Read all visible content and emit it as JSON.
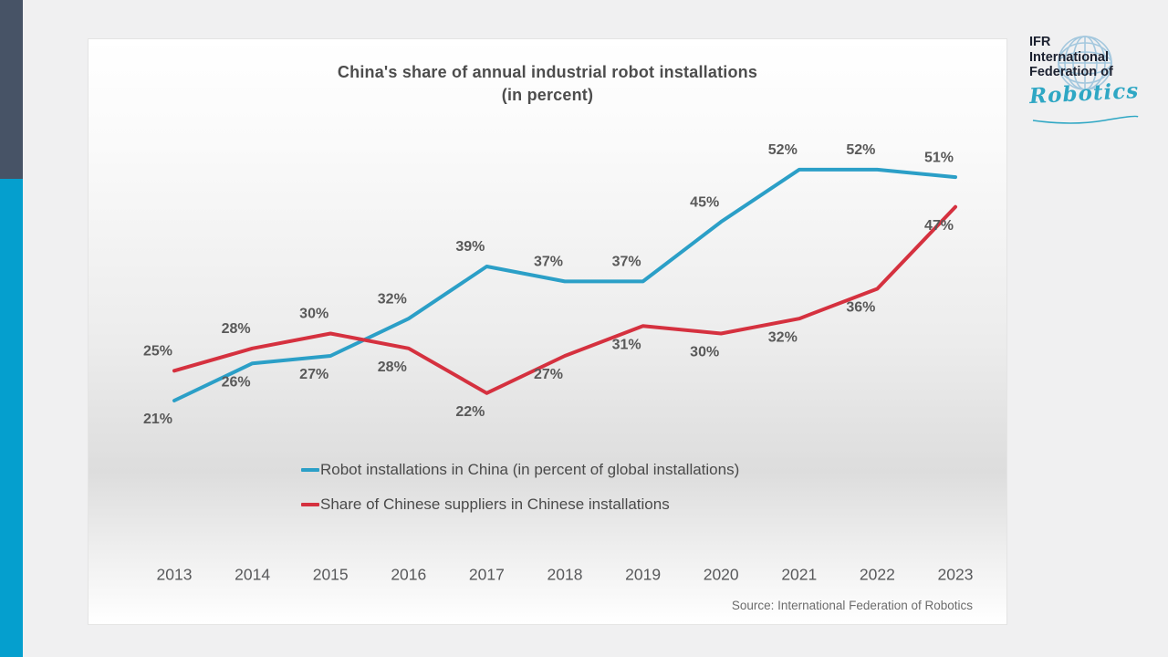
{
  "card": {
    "title_line1": "China's share of annual industrial robot installations",
    "title_line2": "(in percent)",
    "source": "Source: International Federation of Robotics"
  },
  "logo": {
    "line1": "IFR",
    "line2": "International",
    "line3": "Federation of",
    "script": "Robotics",
    "globe_icon": "globe-icon",
    "script_color": "#2fa7c4",
    "text_color": "#1c2130"
  },
  "colors": {
    "accent_dark": "#475366",
    "accent_cyan": "#059fce",
    "background": "#f0f0f1",
    "label_gray": "#595959"
  },
  "chart_data": {
    "type": "line",
    "title": "China's share of annual industrial robot installations (in percent)",
    "categories": [
      "2013",
      "2014",
      "2015",
      "2016",
      "2017",
      "2018",
      "2019",
      "2020",
      "2021",
      "2022",
      "2023"
    ],
    "series": [
      {
        "name": "Robot installations in China (in percent of global installations)",
        "color": "#2b9fc7",
        "values": [
          21,
          26,
          27,
          32,
          39,
          37,
          37,
          45,
          52,
          52,
          51
        ],
        "label_side": [
          "below",
          "below",
          "below",
          "above",
          "above",
          "above",
          "above",
          "above",
          "above",
          "above",
          "above"
        ]
      },
      {
        "name": "Share of Chinese suppliers in Chinese installations",
        "color": "#d5313f",
        "values": [
          25,
          28,
          30,
          28,
          22,
          27,
          31,
          30,
          32,
          36,
          47
        ],
        "label_side": [
          "above",
          "above",
          "above",
          "below",
          "below",
          "below",
          "below",
          "below",
          "below",
          "below",
          "below"
        ]
      }
    ],
    "value_suffix": "%",
    "xlabel": "",
    "ylabel": "",
    "ylim": [
      0,
      60
    ],
    "grid": false,
    "legend_position": "bottom-left-inside",
    "data_labels": true
  }
}
